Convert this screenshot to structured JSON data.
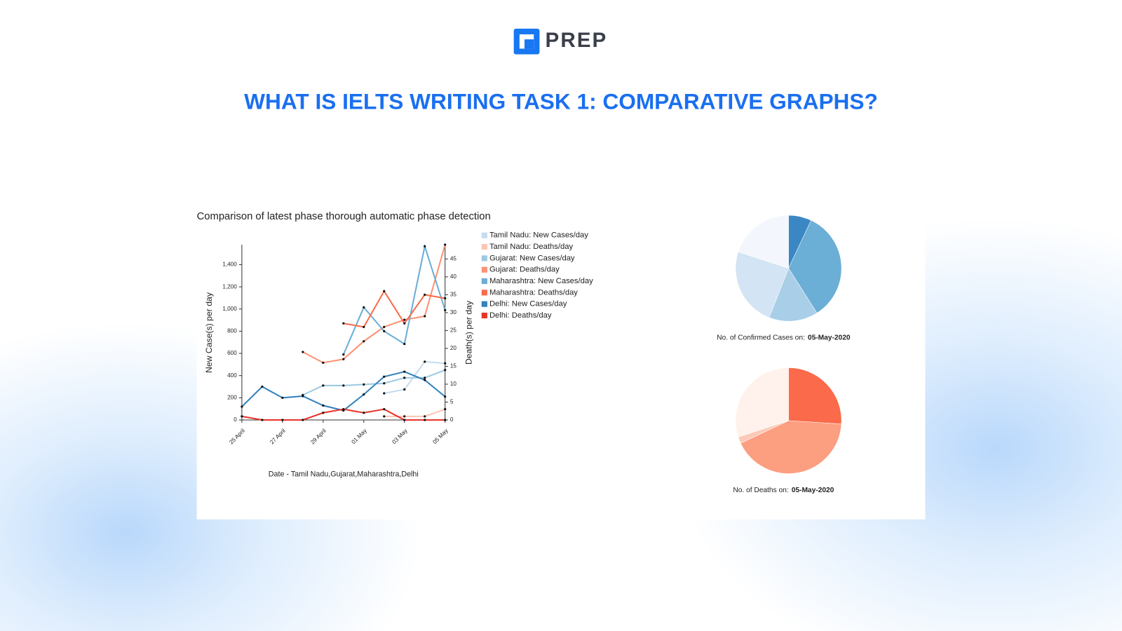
{
  "header": {
    "logo_text": "PREP",
    "title": "WHAT IS IELTS WRITING TASK 1: COMPARATIVE GRAPHS?"
  },
  "chart_data": [
    {
      "type": "line",
      "title": "Comparison of latest phase thorough automatic phase detection",
      "x_label": "Date - Tamil Nadu,Gujarat,Maharashtra,Delhi",
      "y_label": "New Case(s) per day",
      "y2_label": "Death(s) per day",
      "categories": [
        "25 April",
        null,
        "27 April",
        null,
        "29 April",
        null,
        "01 May",
        null,
        "03 May",
        null,
        "05 May"
      ],
      "ylim": [
        0,
        1580
      ],
      "yticks": [
        0,
        200,
        400,
        600,
        800,
        {
          "value": 1000,
          "label": "1,000"
        },
        {
          "value": 1200,
          "label": "1,200"
        },
        {
          "value": 1400,
          "label": "1,400"
        }
      ],
      "y2lim": [
        0,
        49
      ],
      "y2ticks": [
        0,
        5,
        10,
        15,
        20,
        25,
        30,
        35,
        40,
        45
      ],
      "series": [
        {
          "name": "Tamil Nadu: New Cases/day",
          "color": "#c6dbef",
          "values": [
            null,
            null,
            null,
            null,
            null,
            null,
            null,
            240,
            275,
            525,
            510
          ]
        },
        {
          "name": "Tamil Nadu: Deaths/day",
          "color": "#fcc5b3",
          "axis": "y2",
          "values": [
            null,
            null,
            null,
            null,
            null,
            null,
            null,
            1,
            1,
            1,
            3
          ]
        },
        {
          "name": "Gujarat: New Cases/day",
          "color": "#9ecae1",
          "values": [
            null,
            null,
            null,
            225,
            310,
            310,
            320,
            330,
            380,
            380,
            450
          ]
        },
        {
          "name": "Gujarat: Deaths/day",
          "color": "#fc9272",
          "axis": "y2",
          "values": [
            null,
            null,
            null,
            19,
            16,
            17,
            22,
            26,
            28,
            29,
            49
          ]
        },
        {
          "name": "Maharashtra: New Cases/day",
          "color": "#6baed6",
          "values": [
            null,
            null,
            null,
            null,
            null,
            590,
            1015,
            800,
            685,
            1565,
            990
          ]
        },
        {
          "name": "Maharashtra: Deaths/day",
          "color": "#fb6a4a",
          "axis": "y2",
          "values": [
            null,
            null,
            null,
            null,
            null,
            27,
            26,
            36,
            27,
            35,
            34
          ]
        },
        {
          "name": "Delhi: New Cases/day",
          "color": "#3182bd",
          "values": [
            120,
            300,
            200,
            215,
            130,
            85,
            230,
            390,
            435,
            360,
            210
          ]
        },
        {
          "name": "Delhi: Deaths/day",
          "color": "#e8332a",
          "axis": "y2",
          "values": [
            1,
            0,
            0,
            0,
            2,
            3,
            2,
            3,
            0,
            0,
            0
          ]
        }
      ]
    },
    {
      "type": "pie",
      "caption": "No. of Confirmed Cases on:",
      "date": "05-May-2020",
      "values": [
        7,
        34,
        15,
        24,
        20
      ],
      "colors": [
        "#3b87c3",
        "#6baed6",
        "#a9cfe8",
        "#d3e4f4",
        "#f3f7fd"
      ]
    },
    {
      "type": "pie",
      "caption": "No. of Deaths on:",
      "date": "05-May-2020",
      "values": [
        26,
        42,
        2,
        30
      ],
      "colors": [
        "#fb6a4a",
        "#fc9e80",
        "#fcc9b8",
        "#fff2ec"
      ]
    }
  ]
}
